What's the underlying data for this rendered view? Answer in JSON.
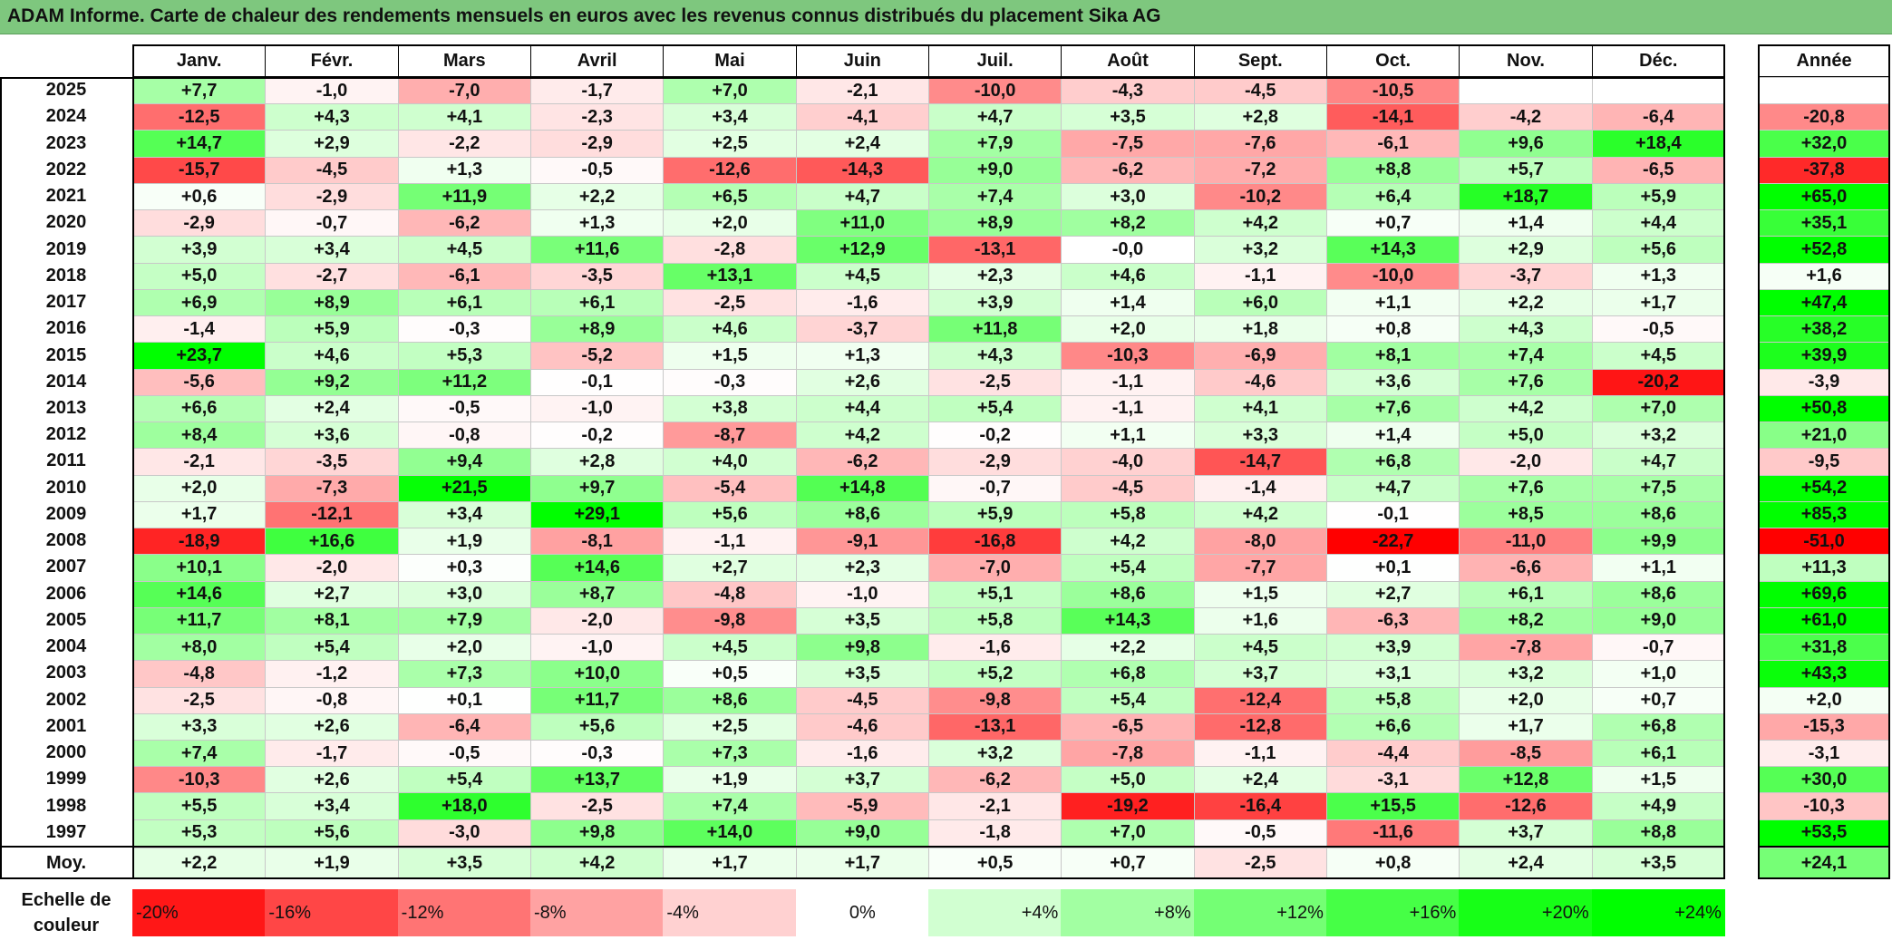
{
  "title": "ADAM Informe. Carte de chaleur des rendements mensuels en euros avec les revenus connus distribués du placement Sika AG",
  "chart_data": {
    "type": "heatmap",
    "title": "ADAM Informe. Carte de chaleur des rendements mensuels en euros avec les revenus connus distribués du placement Sika AG",
    "columns": [
      "Janv.",
      "Févr.",
      "Mars",
      "Avril",
      "Mai",
      "Juin",
      "Juil.",
      "Août",
      "Sept.",
      "Oct.",
      "Nov.",
      "Déc."
    ],
    "year_header": "Année",
    "rows": [
      {
        "year": "2025",
        "values": [
          "+7,7",
          "-1,0",
          "-7,0",
          "-1,7",
          "+7,0",
          "-2,1",
          "-10,0",
          "-4,3",
          "-4,5",
          "-10,5",
          "",
          ""
        ],
        "annual": ""
      },
      {
        "year": "2024",
        "values": [
          "-12,5",
          "+4,3",
          "+4,1",
          "-2,3",
          "+3,4",
          "-4,1",
          "+4,7",
          "+3,5",
          "+2,8",
          "-14,1",
          "-4,2",
          "-6,4"
        ],
        "annual": "-20,8"
      },
      {
        "year": "2023",
        "values": [
          "+14,7",
          "+2,9",
          "-2,2",
          "-2,9",
          "+2,5",
          "+2,4",
          "+7,9",
          "-7,5",
          "-7,6",
          "-6,1",
          "+9,6",
          "+18,4"
        ],
        "annual": "+32,0"
      },
      {
        "year": "2022",
        "values": [
          "-15,7",
          "-4,5",
          "+1,3",
          "-0,5",
          "-12,6",
          "-14,3",
          "+9,0",
          "-6,2",
          "-7,2",
          "+8,8",
          "+5,7",
          "-6,5"
        ],
        "annual": "-37,8"
      },
      {
        "year": "2021",
        "values": [
          "+0,6",
          "-2,9",
          "+11,9",
          "+2,2",
          "+6,5",
          "+4,7",
          "+7,4",
          "+3,0",
          "-10,2",
          "+6,4",
          "+18,7",
          "+5,9"
        ],
        "annual": "+65,0"
      },
      {
        "year": "2020",
        "values": [
          "-2,9",
          "-0,7",
          "-6,2",
          "+1,3",
          "+2,0",
          "+11,0",
          "+8,9",
          "+8,2",
          "+4,2",
          "+0,7",
          "+1,4",
          "+4,4"
        ],
        "annual": "+35,1"
      },
      {
        "year": "2019",
        "values": [
          "+3,9",
          "+3,4",
          "+4,5",
          "+11,6",
          "-2,8",
          "+12,9",
          "-13,1",
          "-0,0",
          "+3,2",
          "+14,3",
          "+2,9",
          "+5,6"
        ],
        "annual": "+52,8"
      },
      {
        "year": "2018",
        "values": [
          "+5,0",
          "-2,7",
          "-6,1",
          "-3,5",
          "+13,1",
          "+4,5",
          "+2,3",
          "+4,6",
          "-1,1",
          "-10,0",
          "-3,7",
          "+1,3"
        ],
        "annual": "+1,6"
      },
      {
        "year": "2017",
        "values": [
          "+6,9",
          "+8,9",
          "+6,1",
          "+6,1",
          "-2,5",
          "-1,6",
          "+3,9",
          "+1,4",
          "+6,0",
          "+1,1",
          "+2,2",
          "+1,7"
        ],
        "annual": "+47,4"
      },
      {
        "year": "2016",
        "values": [
          "-1,4",
          "+5,9",
          "-0,3",
          "+8,9",
          "+4,6",
          "-3,7",
          "+11,8",
          "+2,0",
          "+1,8",
          "+0,8",
          "+4,3",
          "-0,5"
        ],
        "annual": "+38,2"
      },
      {
        "year": "2015",
        "values": [
          "+23,7",
          "+4,6",
          "+5,3",
          "-5,2",
          "+1,5",
          "+1,3",
          "+4,3",
          "-10,3",
          "-6,9",
          "+8,1",
          "+7,4",
          "+4,5"
        ],
        "annual": "+39,9"
      },
      {
        "year": "2014",
        "values": [
          "-5,6",
          "+9,2",
          "+11,2",
          "-0,1",
          "-0,3",
          "+2,6",
          "-2,5",
          "-1,1",
          "-4,6",
          "+3,6",
          "+7,6",
          "-20,2"
        ],
        "annual": "-3,9"
      },
      {
        "year": "2013",
        "values": [
          "+6,6",
          "+2,4",
          "-0,5",
          "-1,0",
          "+3,8",
          "+4,4",
          "+5,4",
          "-1,1",
          "+4,1",
          "+7,6",
          "+4,2",
          "+7,0"
        ],
        "annual": "+50,8"
      },
      {
        "year": "2012",
        "values": [
          "+8,4",
          "+3,6",
          "-0,8",
          "-0,2",
          "-8,7",
          "+4,2",
          "-0,2",
          "+1,1",
          "+3,3",
          "+1,4",
          "+5,0",
          "+3,2"
        ],
        "annual": "+21,0"
      },
      {
        "year": "2011",
        "values": [
          "-2,1",
          "-3,5",
          "+9,4",
          "+2,8",
          "+4,0",
          "-6,2",
          "-2,9",
          "-4,0",
          "-14,7",
          "+6,8",
          "-2,0",
          "+4,7"
        ],
        "annual": "-9,5"
      },
      {
        "year": "2010",
        "values": [
          "+2,0",
          "-7,3",
          "+21,5",
          "+9,7",
          "-5,4",
          "+14,8",
          "-0,7",
          "-4,5",
          "-1,4",
          "+4,7",
          "+7,6",
          "+7,5"
        ],
        "annual": "+54,2"
      },
      {
        "year": "2009",
        "values": [
          "+1,7",
          "-12,1",
          "+3,4",
          "+29,1",
          "+5,6",
          "+8,6",
          "+5,9",
          "+5,8",
          "+4,2",
          "-0,1",
          "+8,5",
          "+8,6"
        ],
        "annual": "+85,3"
      },
      {
        "year": "2008",
        "values": [
          "-18,9",
          "+16,6",
          "+1,9",
          "-8,1",
          "-1,1",
          "-9,1",
          "-16,8",
          "+4,2",
          "-8,0",
          "-22,7",
          "-11,0",
          "+9,9"
        ],
        "annual": "-51,0"
      },
      {
        "year": "2007",
        "values": [
          "+10,1",
          "-2,0",
          "+0,3",
          "+14,6",
          "+2,7",
          "+2,3",
          "-7,0",
          "+5,4",
          "-7,7",
          "+0,1",
          "-6,6",
          "+1,1"
        ],
        "annual": "+11,3"
      },
      {
        "year": "2006",
        "values": [
          "+14,6",
          "+2,7",
          "+3,0",
          "+8,7",
          "-4,8",
          "-1,0",
          "+5,1",
          "+8,6",
          "+1,5",
          "+2,7",
          "+6,1",
          "+8,6"
        ],
        "annual": "+69,6"
      },
      {
        "year": "2005",
        "values": [
          "+11,7",
          "+8,1",
          "+7,9",
          "-2,0",
          "-9,8",
          "+3,5",
          "+5,8",
          "+14,3",
          "+1,6",
          "-6,3",
          "+8,2",
          "+9,0"
        ],
        "annual": "+61,0"
      },
      {
        "year": "2004",
        "values": [
          "+8,0",
          "+5,4",
          "+2,0",
          "-1,0",
          "+4,5",
          "+9,8",
          "-1,6",
          "+2,2",
          "+4,5",
          "+3,9",
          "-7,8",
          "-0,7"
        ],
        "annual": "+31,8"
      },
      {
        "year": "2003",
        "values": [
          "-4,8",
          "-1,2",
          "+7,3",
          "+10,0",
          "+0,5",
          "+3,5",
          "+5,2",
          "+6,8",
          "+3,7",
          "+3,1",
          "+3,2",
          "+1,0"
        ],
        "annual": "+43,3"
      },
      {
        "year": "2002",
        "values": [
          "-2,5",
          "-0,8",
          "+0,1",
          "+11,7",
          "+8,6",
          "-4,5",
          "-9,8",
          "+5,4",
          "-12,4",
          "+5,8",
          "+2,0",
          "+0,7"
        ],
        "annual": "+2,0"
      },
      {
        "year": "2001",
        "values": [
          "+3,3",
          "+2,6",
          "-6,4",
          "+5,6",
          "+2,5",
          "-4,6",
          "-13,1",
          "-6,5",
          "-12,8",
          "+6,6",
          "+1,7",
          "+6,8"
        ],
        "annual": "-15,3"
      },
      {
        "year": "2000",
        "values": [
          "+7,4",
          "-1,7",
          "-0,5",
          "-0,3",
          "+7,3",
          "-1,6",
          "+3,2",
          "-7,8",
          "-1,1",
          "-4,4",
          "-8,5",
          "+6,1"
        ],
        "annual": "-3,1"
      },
      {
        "year": "1999",
        "values": [
          "-10,3",
          "+2,6",
          "+5,4",
          "+13,7",
          "+1,9",
          "+3,7",
          "-6,2",
          "+5,0",
          "+2,4",
          "-3,1",
          "+12,8",
          "+1,5"
        ],
        "annual": "+30,0"
      },
      {
        "year": "1998",
        "values": [
          "+5,5",
          "+3,4",
          "+18,0",
          "-2,5",
          "+7,4",
          "-5,9",
          "-2,1",
          "-19,2",
          "-16,4",
          "+15,5",
          "-12,6",
          "+4,9"
        ],
        "annual": "-10,3"
      },
      {
        "year": "1997",
        "values": [
          "+5,3",
          "+5,6",
          "-3,0",
          "+9,8",
          "+14,0",
          "+9,0",
          "-1,8",
          "+7,0",
          "-0,5",
          "-11,6",
          "+3,7",
          "+8,8"
        ],
        "annual": "+53,5"
      }
    ],
    "average": {
      "label": "Moy.",
      "values": [
        "+2,2",
        "+1,9",
        "+3,5",
        "+4,2",
        "+1,7",
        "+1,7",
        "+0,5",
        "+0,7",
        "-2,5",
        "+0,8",
        "+2,4",
        "+3,5"
      ],
      "annual": "+24,1"
    },
    "scale": {
      "label_line1": "Echelle de",
      "label_line2": "couleur",
      "steps": [
        {
          "label": "-20%",
          "value": -20
        },
        {
          "label": "-16%",
          "value": -16
        },
        {
          "label": "-12%",
          "value": -12
        },
        {
          "label": "-8%",
          "value": -8
        },
        {
          "label": "-4%",
          "value": -4
        },
        {
          "label": "0%",
          "value": 0
        },
        {
          "label": "+4%",
          "value": 4
        },
        {
          "label": "+8%",
          "value": 8
        },
        {
          "label": "+12%",
          "value": 12
        },
        {
          "label": "+16%",
          "value": 16
        },
        {
          "label": "+20%",
          "value": 20
        },
        {
          "label": "+24%",
          "value": 24
        }
      ]
    },
    "colors": {
      "negative": "#ff0000",
      "neutral": "#ffffff",
      "positive": "#00ff00"
    }
  }
}
